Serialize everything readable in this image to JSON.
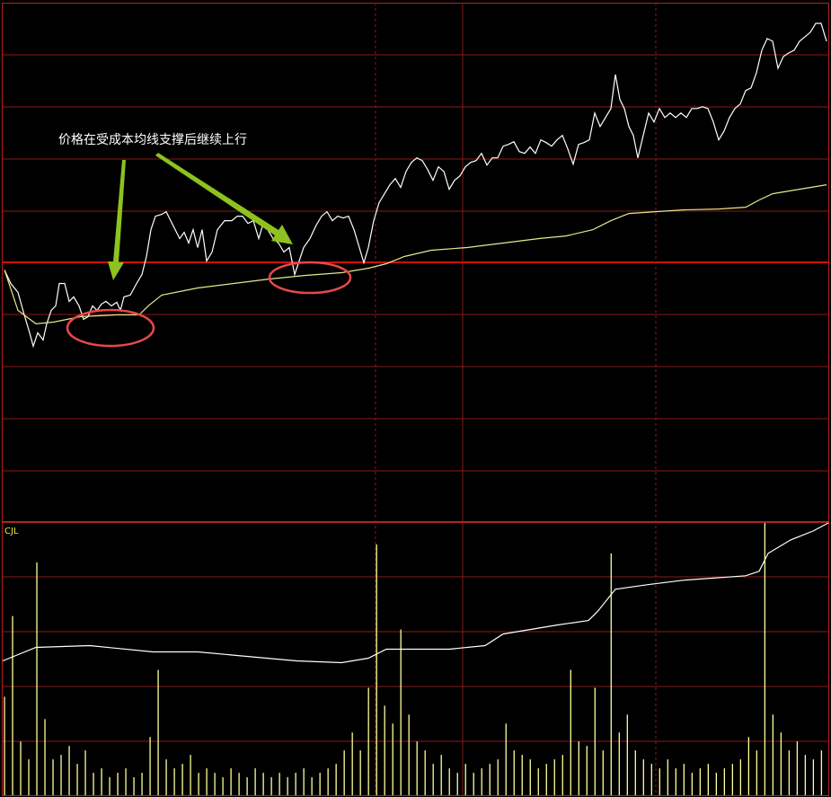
{
  "chart_data": [
    {
      "type": "line",
      "annotation": "价格在受成本均线支撑后继续上行",
      "xlim": [
        0,
        922
      ],
      "ylim": [
        -288,
        289
      ],
      "series": [
        {
          "color": "#ffffff",
          "x": [
            5,
            12,
            20,
            27,
            33,
            37,
            42,
            48,
            52,
            57,
            62,
            66,
            72,
            77,
            82,
            88,
            93,
            98,
            103,
            108,
            113,
            118,
            124,
            130,
            134,
            138,
            145,
            152,
            158,
            163,
            168,
            173,
            180,
            185,
            190,
            195,
            200,
            205,
            210,
            215,
            220,
            225,
            230,
            236,
            242,
            250,
            258,
            264,
            270,
            276,
            282,
            288,
            293,
            298,
            304,
            310,
            316,
            322,
            328,
            333,
            338,
            345,
            352,
            358,
            364,
            370,
            376,
            382,
            388,
            394,
            400,
            405,
            410,
            416,
            422,
            428,
            434,
            440,
            446,
            452,
            458,
            464,
            470,
            476,
            482,
            488,
            494,
            500,
            506,
            512,
            518,
            524,
            530,
            536,
            542,
            548,
            554,
            560,
            566,
            572,
            578,
            584,
            590,
            596,
            602,
            608,
            614,
            620,
            626,
            632,
            638,
            644,
            650,
            656,
            662,
            668,
            674,
            680,
            685,
            690,
            695,
            700,
            705,
            710,
            716,
            722,
            728,
            734,
            740,
            746,
            752,
            758,
            764,
            770,
            776,
            782,
            788,
            794,
            800,
            806,
            812,
            818,
            824,
            830,
            836,
            842,
            848,
            854,
            860,
            866,
            872,
            878,
            884,
            890,
            896,
            902,
            908,
            914,
            920
          ],
          "values": [
            -8,
            -23,
            -33,
            -58,
            -78,
            -93,
            -78,
            -86,
            -68,
            -53,
            -48,
            -23,
            -23,
            -43,
            -38,
            -48,
            -63,
            -60,
            -48,
            -53,
            -46,
            -43,
            -48,
            -44,
            -53,
            -38,
            -36,
            -23,
            -13,
            7,
            37,
            52,
            54,
            57,
            47,
            37,
            27,
            34,
            22,
            37,
            17,
            37,
            2,
            12,
            37,
            47,
            47,
            52,
            52,
            44,
            47,
            27,
            44,
            37,
            27,
            22,
            12,
            17,
            -13,
            2,
            17,
            27,
            42,
            52,
            57,
            47,
            52,
            50,
            52,
            37,
            17,
            0,
            17,
            47,
            67,
            77,
            87,
            94,
            84,
            102,
            112,
            117,
            114,
            104,
            92,
            107,
            102,
            82,
            92,
            97,
            107,
            112,
            114,
            122,
            109,
            117,
            117,
            130,
            132,
            135,
            124,
            122,
            129,
            122,
            137,
            134,
            130,
            137,
            142,
            127,
            110,
            132,
            134,
            137,
            167,
            152,
            162,
            172,
            210,
            182,
            172,
            152,
            142,
            117,
            142,
            167,
            157,
            172,
            162,
            167,
            162,
            167,
            162,
            172,
            172,
            174,
            172,
            157,
            137,
            147,
            162,
            172,
            177,
            192,
            195,
            212,
            237,
            250,
            247,
            217,
            230,
            234,
            237,
            247,
            252,
            257,
            267,
            267,
            247
          ]
        },
        {
          "color": "#e8e88a",
          "x": [
            5,
            20,
            40,
            60,
            90,
            130,
            155,
            165,
            180,
            220,
            260,
            300,
            340,
            380,
            410,
            430,
            450,
            480,
            520,
            560,
            600,
            630,
            660,
            680,
            700,
            760,
            800,
            830,
            845,
            860,
            890,
            920
          ],
          "values": [
            -8,
            -53,
            -68,
            -66,
            -60,
            -58,
            -58,
            -48,
            -36,
            -28,
            -23,
            -18,
            -14,
            -11,
            -6,
            -1,
            7,
            14,
            17,
            22,
            27,
            30,
            37,
            47,
            55,
            59,
            60,
            62,
            70,
            77,
            82,
            87
          ]
        }
      ]
    },
    {
      "type": "bar",
      "title": "CJL",
      "color": "#ffff99",
      "xlim": [
        0,
        922
      ],
      "ylim": [
        0,
        304
      ],
      "values": [
        110,
        200,
        60,
        40,
        260,
        85,
        40,
        45,
        55,
        35,
        50,
        25,
        30,
        20,
        25,
        30,
        20,
        25,
        65,
        140,
        40,
        30,
        35,
        45,
        25,
        30,
        25,
        20,
        30,
        25,
        20,
        30,
        25,
        20,
        25,
        20,
        25,
        30,
        20,
        25,
        30,
        35,
        50,
        70,
        50,
        120,
        280,
        100,
        80,
        185,
        90,
        60,
        50,
        35,
        45,
        30,
        25,
        35,
        25,
        30,
        35,
        40,
        80,
        50,
        45,
        40,
        30,
        35,
        40,
        45,
        140,
        60,
        55,
        120,
        50,
        270,
        70,
        90,
        50,
        40,
        35,
        30,
        40,
        30,
        35,
        25,
        30,
        35,
        25,
        30,
        35,
        40,
        65,
        50,
        304,
        90,
        70,
        50,
        60,
        45,
        40,
        50
      ],
      "series": [
        {
          "type": "line",
          "color": "#ffffff",
          "x": [
            3,
            40,
            100,
            170,
            220,
            330,
            380,
            410,
            430,
            500,
            540,
            560,
            620,
            655,
            665,
            685,
            720,
            760,
            830,
            845,
            855,
            880,
            905,
            922
          ],
          "values": [
            150,
            165,
            167,
            160,
            160,
            150,
            148,
            153,
            163,
            163,
            167,
            180,
            190,
            195,
            205,
            230,
            235,
            240,
            245,
            250,
            270,
            285,
            295,
            304
          ]
        }
      ]
    }
  ]
}
